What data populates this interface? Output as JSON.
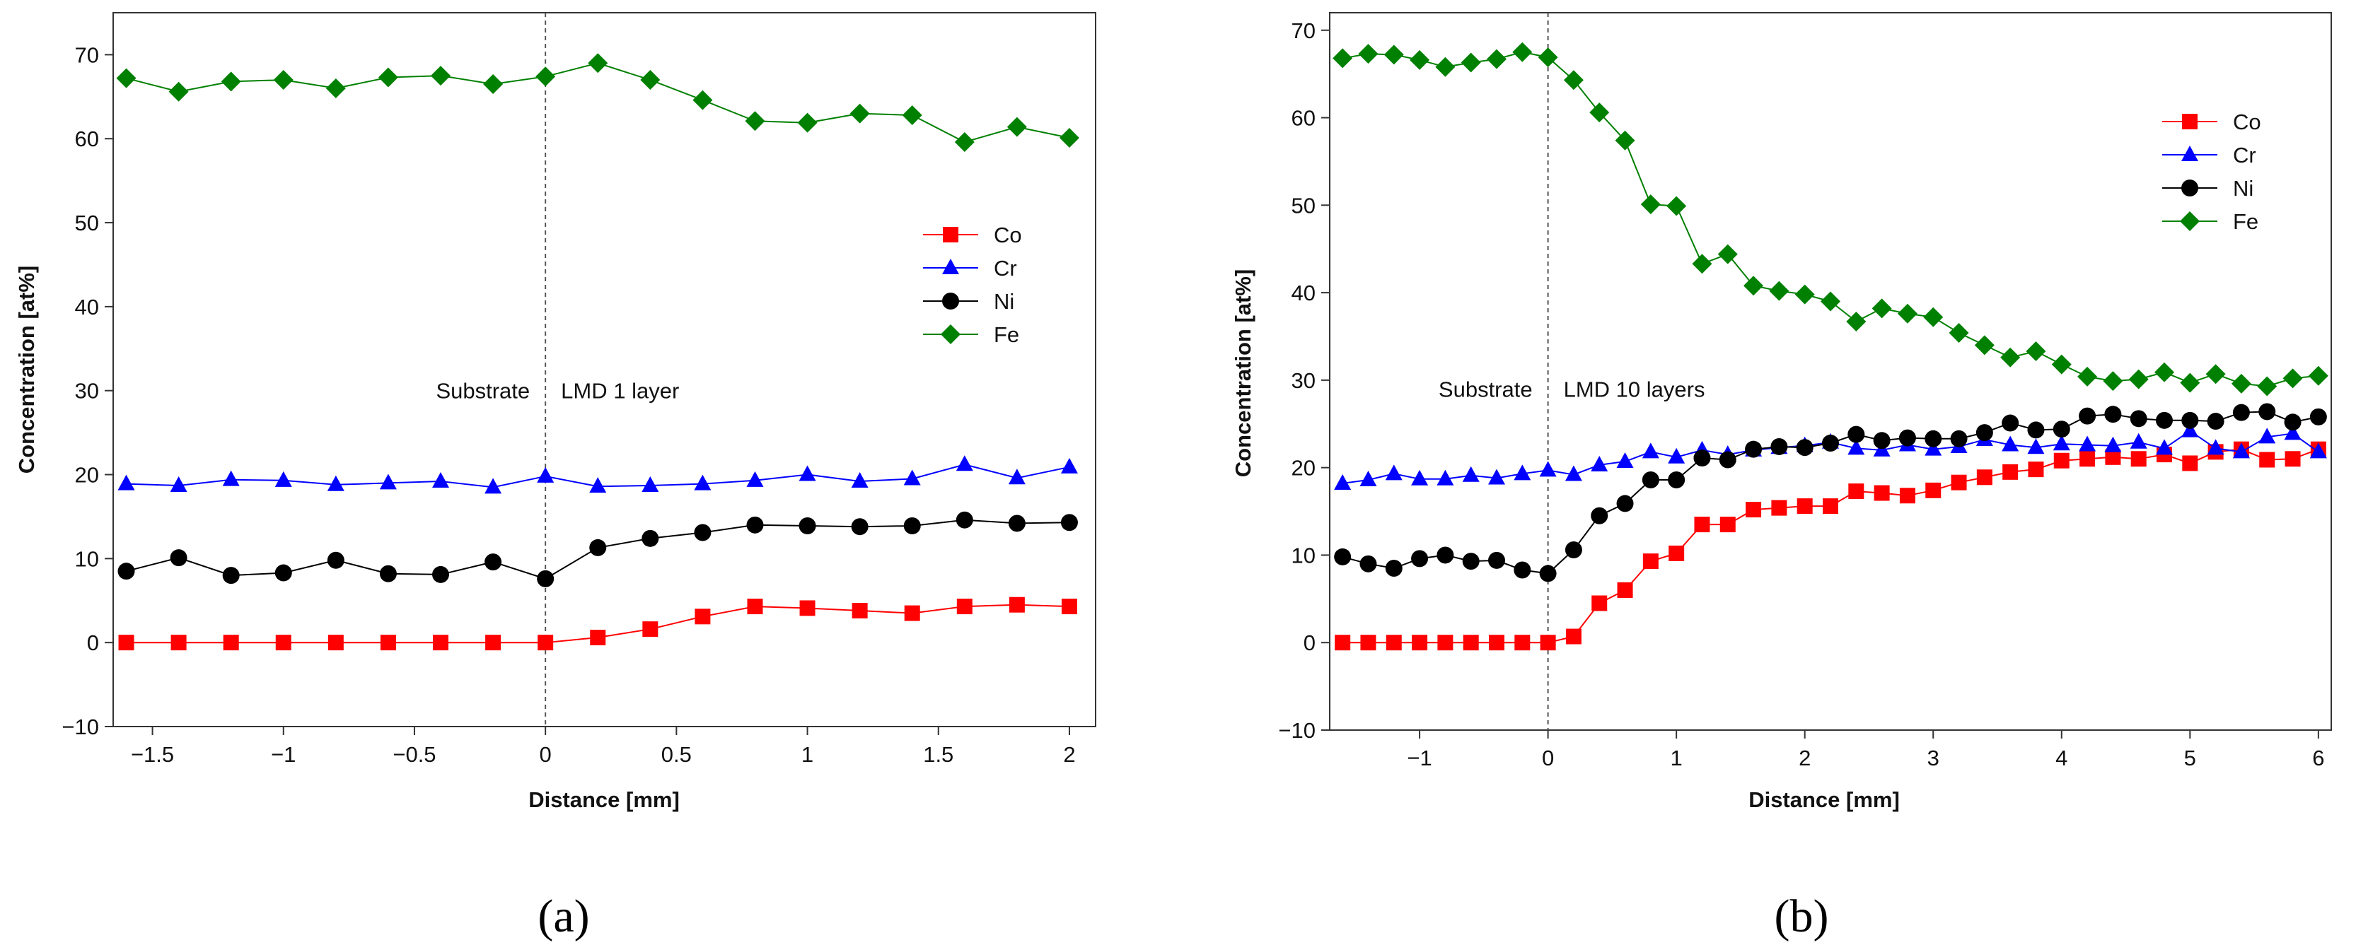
{
  "chart_data": [
    {
      "type": "line",
      "panel_label": "(a)",
      "xlabel": "Distance [mm]",
      "ylabel": "Concentration [at%]",
      "xlim": [
        -1.65,
        2.1
      ],
      "ylim": [
        -10,
        75
      ],
      "xticks": [
        -1.5,
        -1,
        -0.5,
        0,
        0.5,
        1,
        1.5,
        2
      ],
      "xtick_labels": [
        "−1.5",
        "−1",
        "−0.5",
        "0",
        "0.5",
        "1",
        "1.5",
        "2"
      ],
      "yticks": [
        -10,
        0,
        10,
        20,
        30,
        40,
        50,
        60,
        70
      ],
      "ytick_labels": [
        "−10",
        "0",
        "10",
        "20",
        "30",
        "40",
        "50",
        "60",
        "70"
      ],
      "divider_x": 0,
      "annotations": {
        "left": "Substrate",
        "right": "LMD 1 layer",
        "y": 30
      },
      "legend": {
        "position": "right-middle"
      },
      "x": [
        -1.6,
        -1.4,
        -1.2,
        -1.0,
        -0.8,
        -0.6,
        -0.4,
        -0.2,
        0.0,
        0.2,
        0.4,
        0.6,
        0.8,
        1.0,
        1.2,
        1.4,
        1.6,
        1.8,
        2.0
      ],
      "series": [
        {
          "name": "Co",
          "color": "#ff0000",
          "marker": "square",
          "values": [
            0,
            0,
            0,
            0,
            0,
            0,
            0,
            0,
            0,
            0.6,
            1.6,
            3.1,
            4.3,
            4.1,
            3.8,
            3.5,
            4.3,
            4.5,
            4.3
          ]
        },
        {
          "name": "Cr",
          "color": "#0000ff",
          "marker": "triangle",
          "values": [
            18.9,
            18.7,
            19.4,
            19.3,
            18.8,
            19.0,
            19.2,
            18.5,
            19.8,
            18.6,
            18.7,
            18.9,
            19.3,
            20.0,
            19.2,
            19.5,
            21.2,
            19.6,
            20.9
          ]
        },
        {
          "name": "Ni",
          "color": "#000000",
          "marker": "circle",
          "values": [
            8.5,
            10.1,
            8.0,
            8.3,
            9.8,
            8.2,
            8.1,
            9.6,
            7.6,
            11.3,
            12.4,
            13.1,
            14.0,
            13.9,
            13.8,
            13.9,
            14.6,
            14.2,
            14.3
          ]
        },
        {
          "name": "Fe",
          "color": "#008000",
          "marker": "diamond",
          "values": [
            67.2,
            65.6,
            66.8,
            67.0,
            66.0,
            67.3,
            67.5,
            66.5,
            67.4,
            69.0,
            67.0,
            64.6,
            62.1,
            61.9,
            63.0,
            62.8,
            59.6,
            61.4,
            60.1
          ]
        }
      ]
    },
    {
      "type": "line",
      "panel_label": "(b)",
      "xlabel": "Distance [mm]",
      "ylabel": "Concentration [at%]",
      "xlim": [
        -1.7,
        6.1
      ],
      "ylim": [
        -10,
        72
      ],
      "xticks": [
        -1,
        0,
        1,
        2,
        3,
        4,
        5,
        6
      ],
      "xtick_labels": [
        "−1",
        "0",
        "1",
        "2",
        "3",
        "4",
        "5",
        "6"
      ],
      "yticks": [
        -10,
        0,
        10,
        20,
        30,
        40,
        50,
        60,
        70
      ],
      "ytick_labels": [
        "−10",
        "0",
        "10",
        "20",
        "30",
        "40",
        "50",
        "60",
        "70"
      ],
      "divider_x": 0,
      "annotations": {
        "left": "Substrate",
        "right": "LMD 10 layers",
        "y": 29
      },
      "legend": {
        "position": "top-right"
      },
      "x": [
        -1.6,
        -1.4,
        -1.2,
        -1.0,
        -0.8,
        -0.6,
        -0.4,
        -0.2,
        0.0,
        0.2,
        0.4,
        0.6,
        0.8,
        1.0,
        1.2,
        1.4,
        1.6,
        1.8,
        2.0,
        2.2,
        2.4,
        2.6,
        2.8,
        3.0,
        3.2,
        3.4,
        3.6,
        3.8,
        4.0,
        4.2,
        4.4,
        4.6,
        4.8,
        5.0,
        5.2,
        5.4,
        5.6,
        5.8,
        6.0
      ],
      "series": [
        {
          "name": "Co",
          "color": "#ff0000",
          "marker": "square",
          "values": [
            0,
            0,
            0,
            0,
            0,
            0,
            0,
            0,
            0,
            0.7,
            4.5,
            6.0,
            9.3,
            10.2,
            13.5,
            13.5,
            15.2,
            15.4,
            15.6,
            15.6,
            17.3,
            17.1,
            16.8,
            17.4,
            18.3,
            18.9,
            19.5,
            19.8,
            20.8,
            21.0,
            21.2,
            21.0,
            21.5,
            20.5,
            21.8,
            22.1,
            20.9,
            21.0,
            22.1
          ]
        },
        {
          "name": "Cr",
          "color": "#0000ff",
          "marker": "triangle",
          "values": [
            18.2,
            18.6,
            19.3,
            18.7,
            18.7,
            19.1,
            18.8,
            19.3,
            19.7,
            19.2,
            20.3,
            20.7,
            21.8,
            21.2,
            22.0,
            21.5,
            22.0,
            22.3,
            22.5,
            22.9,
            22.2,
            22.0,
            22.6,
            22.1,
            22.4,
            23.2,
            22.6,
            22.3,
            22.7,
            22.6,
            22.5,
            22.9,
            22.2,
            24.2,
            22.2,
            21.8,
            23.5,
            23.9,
            21.8
          ]
        },
        {
          "name": "Ni",
          "color": "#000000",
          "marker": "circle",
          "values": [
            9.8,
            9.0,
            8.5,
            9.6,
            10.0,
            9.3,
            9.4,
            8.3,
            7.9,
            10.6,
            14.5,
            15.9,
            18.6,
            18.6,
            21.1,
            20.9,
            22.1,
            22.4,
            22.3,
            22.8,
            23.8,
            23.1,
            23.4,
            23.3,
            23.3,
            24.0,
            25.1,
            24.3,
            24.4,
            25.9,
            26.1,
            25.6,
            25.4,
            25.4,
            25.3,
            26.3,
            26.4,
            25.2,
            25.8
          ]
        },
        {
          "name": "Fe",
          "color": "#008000",
          "marker": "diamond",
          "values": [
            66.8,
            67.3,
            67.2,
            66.6,
            65.8,
            66.3,
            66.7,
            67.5,
            66.9,
            64.3,
            60.6,
            57.4,
            50.1,
            49.9,
            43.3,
            44.4,
            40.8,
            40.2,
            39.8,
            39.0,
            36.7,
            38.2,
            37.6,
            37.2,
            35.4,
            34.0,
            32.6,
            33.3,
            31.8,
            30.4,
            29.9,
            30.1,
            30.9,
            29.7,
            30.7,
            29.6,
            29.3,
            30.2,
            30.5
          ]
        }
      ]
    }
  ]
}
